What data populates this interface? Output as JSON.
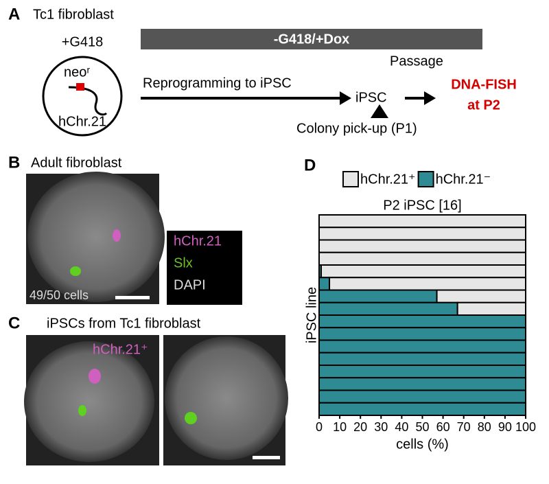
{
  "panel_a": {
    "label": "A",
    "cell": "Tc1 fibroblast",
    "before": "+G418",
    "bar": "-G418/+Dox",
    "gene": "neoʳ",
    "chromosome": "hChr.21",
    "step": "Reprogramming to iPSC",
    "ipsc": "iPSC",
    "passage": "Passage",
    "fish_1": "DNA-FISH",
    "fish_2": "at P2",
    "pick": "Colony pick-up (P1)"
  },
  "panel_b": {
    "label": "B",
    "title": "Adult fibroblast",
    "count": "49/50 cells",
    "legend": [
      "hChr.21",
      "Slx",
      "DAPI"
    ]
  },
  "panel_c": {
    "label": "C",
    "title": "iPSCs from Tc1 fibroblast",
    "marker": "hChr.21⁺"
  },
  "chart_data": {
    "type": "stacked-barh",
    "panel_label": "D",
    "title": "P2 iPSC [16]",
    "xlabel": "cells (%)",
    "ylabel": "iPSC line",
    "categories": [
      null,
      null,
      null,
      null,
      null,
      null,
      null,
      null,
      null,
      null,
      null,
      null,
      null,
      null,
      null,
      null
    ],
    "series": [
      {
        "name": "hChr.21⁻",
        "color": "#2e8a93",
        "values": [
          0,
          0,
          0,
          0,
          1,
          5,
          57,
          67,
          100,
          100,
          100,
          100,
          100,
          100,
          100,
          100
        ]
      },
      {
        "name": "hChr.21⁺",
        "color": "#e6e6e6",
        "values": [
          100,
          100,
          100,
          100,
          99,
          95,
          43,
          33,
          0,
          0,
          0,
          0,
          0,
          0,
          0,
          0
        ]
      }
    ],
    "xlim": [
      0,
      100
    ],
    "xticks": [
      0,
      10,
      20,
      30,
      40,
      50,
      60,
      70,
      80,
      90,
      100
    ]
  }
}
